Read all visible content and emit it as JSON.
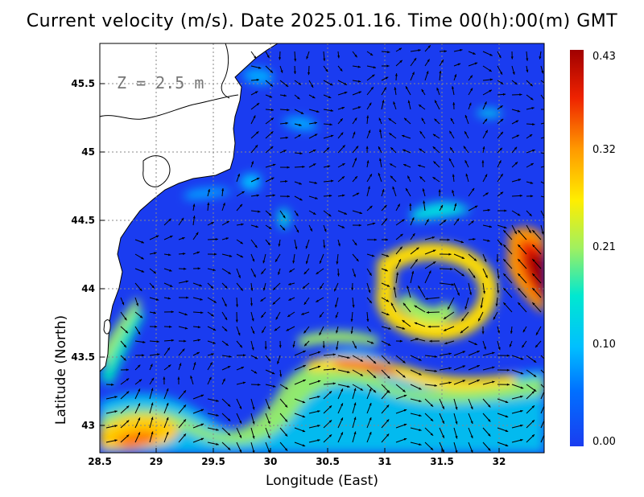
{
  "title": "Current velocity (m/s). Date 2025.01.16. Time 00(h):00(m) GMT",
  "annotation": "Z = 2.5 m",
  "chart_data": {
    "type": "heatmap",
    "xlabel": "Longitude (East)",
    "ylabel": "Latitude (North)",
    "xlim": [
      28.5,
      32.4
    ],
    "ylim": [
      42.8,
      45.8
    ],
    "x_ticks": [
      "28.5",
      "29",
      "29.5",
      "30",
      "30.5",
      "31",
      "31.5",
      "32"
    ],
    "y_ticks": [
      "43",
      "43.5",
      "44",
      "44.5",
      "45",
      "45.5"
    ],
    "grid": true,
    "colorbar": {
      "label_values": [
        "0.43",
        "0.32",
        "0.21",
        "0.10",
        "0.00"
      ],
      "range": [
        0.0,
        0.43
      ],
      "colors": [
        "#1a3cf0",
        "#00a8ff",
        "#00e0e0",
        "#a0f060",
        "#ffee00",
        "#ff9900",
        "#ee2200",
        "#a00000"
      ]
    },
    "speed_features": [
      {
        "lon": 30.8,
        "lat": 43.45,
        "speed": 0.33
      },
      {
        "lon": 32.25,
        "lat": 44.1,
        "speed": 0.43
      },
      {
        "lon": 28.8,
        "lat": 42.97,
        "speed": 0.36
      },
      {
        "lon": 31.3,
        "lat": 43.85,
        "speed": 0.28
      },
      {
        "lon": 29.6,
        "lat": 43.1,
        "speed": 0.22
      }
    ]
  },
  "colors": {
    "land": "#ffffff",
    "sea_background": "#1a3cf0",
    "coastline": "#000000",
    "arrows": "#000000"
  }
}
